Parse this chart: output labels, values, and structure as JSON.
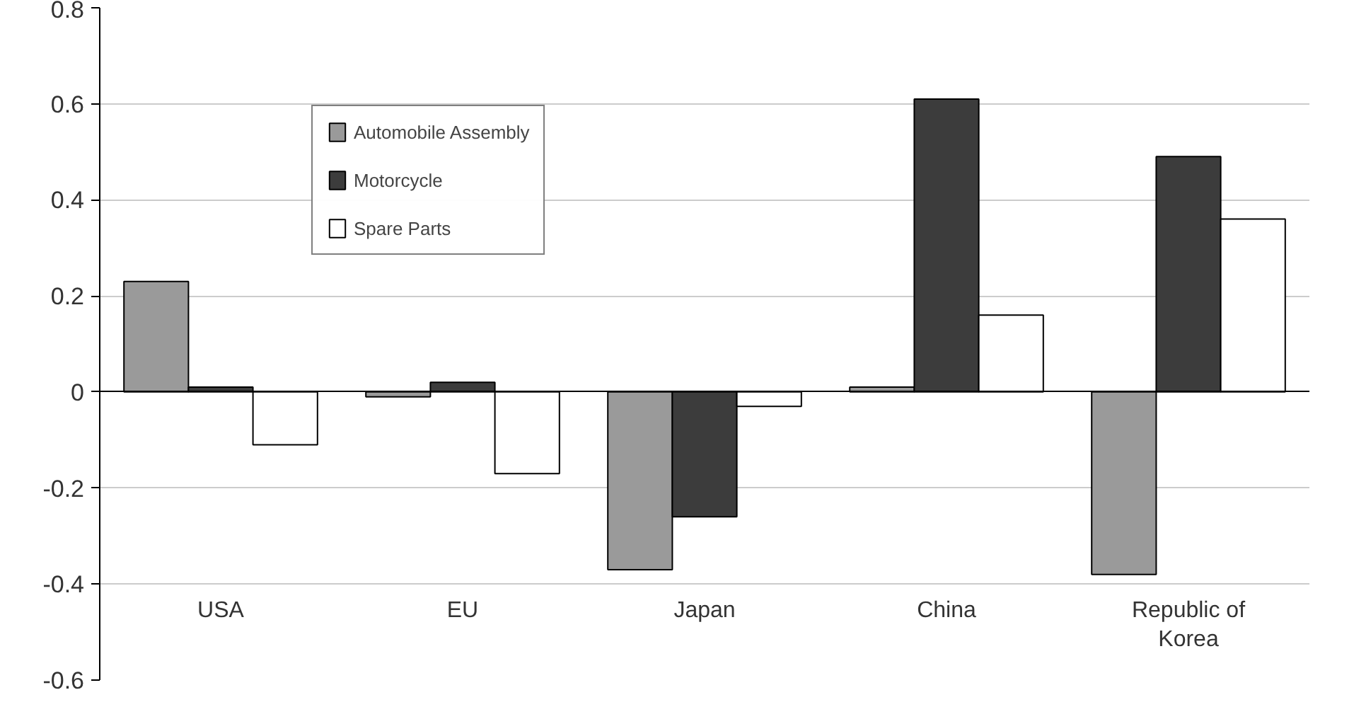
{
  "chart_data": {
    "type": "bar",
    "categories": [
      "USA",
      "EU",
      "Japan",
      "China",
      "Republic of Korea"
    ],
    "series": [
      {
        "name": "Automobile Assembly",
        "color": "#9a9a9a",
        "values": [
          0.23,
          -0.01,
          -0.37,
          0.01,
          -0.38
        ]
      },
      {
        "name": "Motorcycle",
        "color": "#3c3c3c",
        "values": [
          0.01,
          0.02,
          -0.26,
          0.61,
          0.49
        ]
      },
      {
        "name": "Spare Parts",
        "color": "#ffffff",
        "values": [
          -0.11,
          -0.17,
          -0.03,
          0.16,
          0.36
        ]
      }
    ],
    "ylim": [
      -0.6,
      0.8
    ],
    "yticks": [
      -0.6,
      -0.4,
      -0.2,
      0,
      0.2,
      0.4,
      0.6,
      0.8
    ],
    "grid": "y",
    "legend": "top left"
  }
}
